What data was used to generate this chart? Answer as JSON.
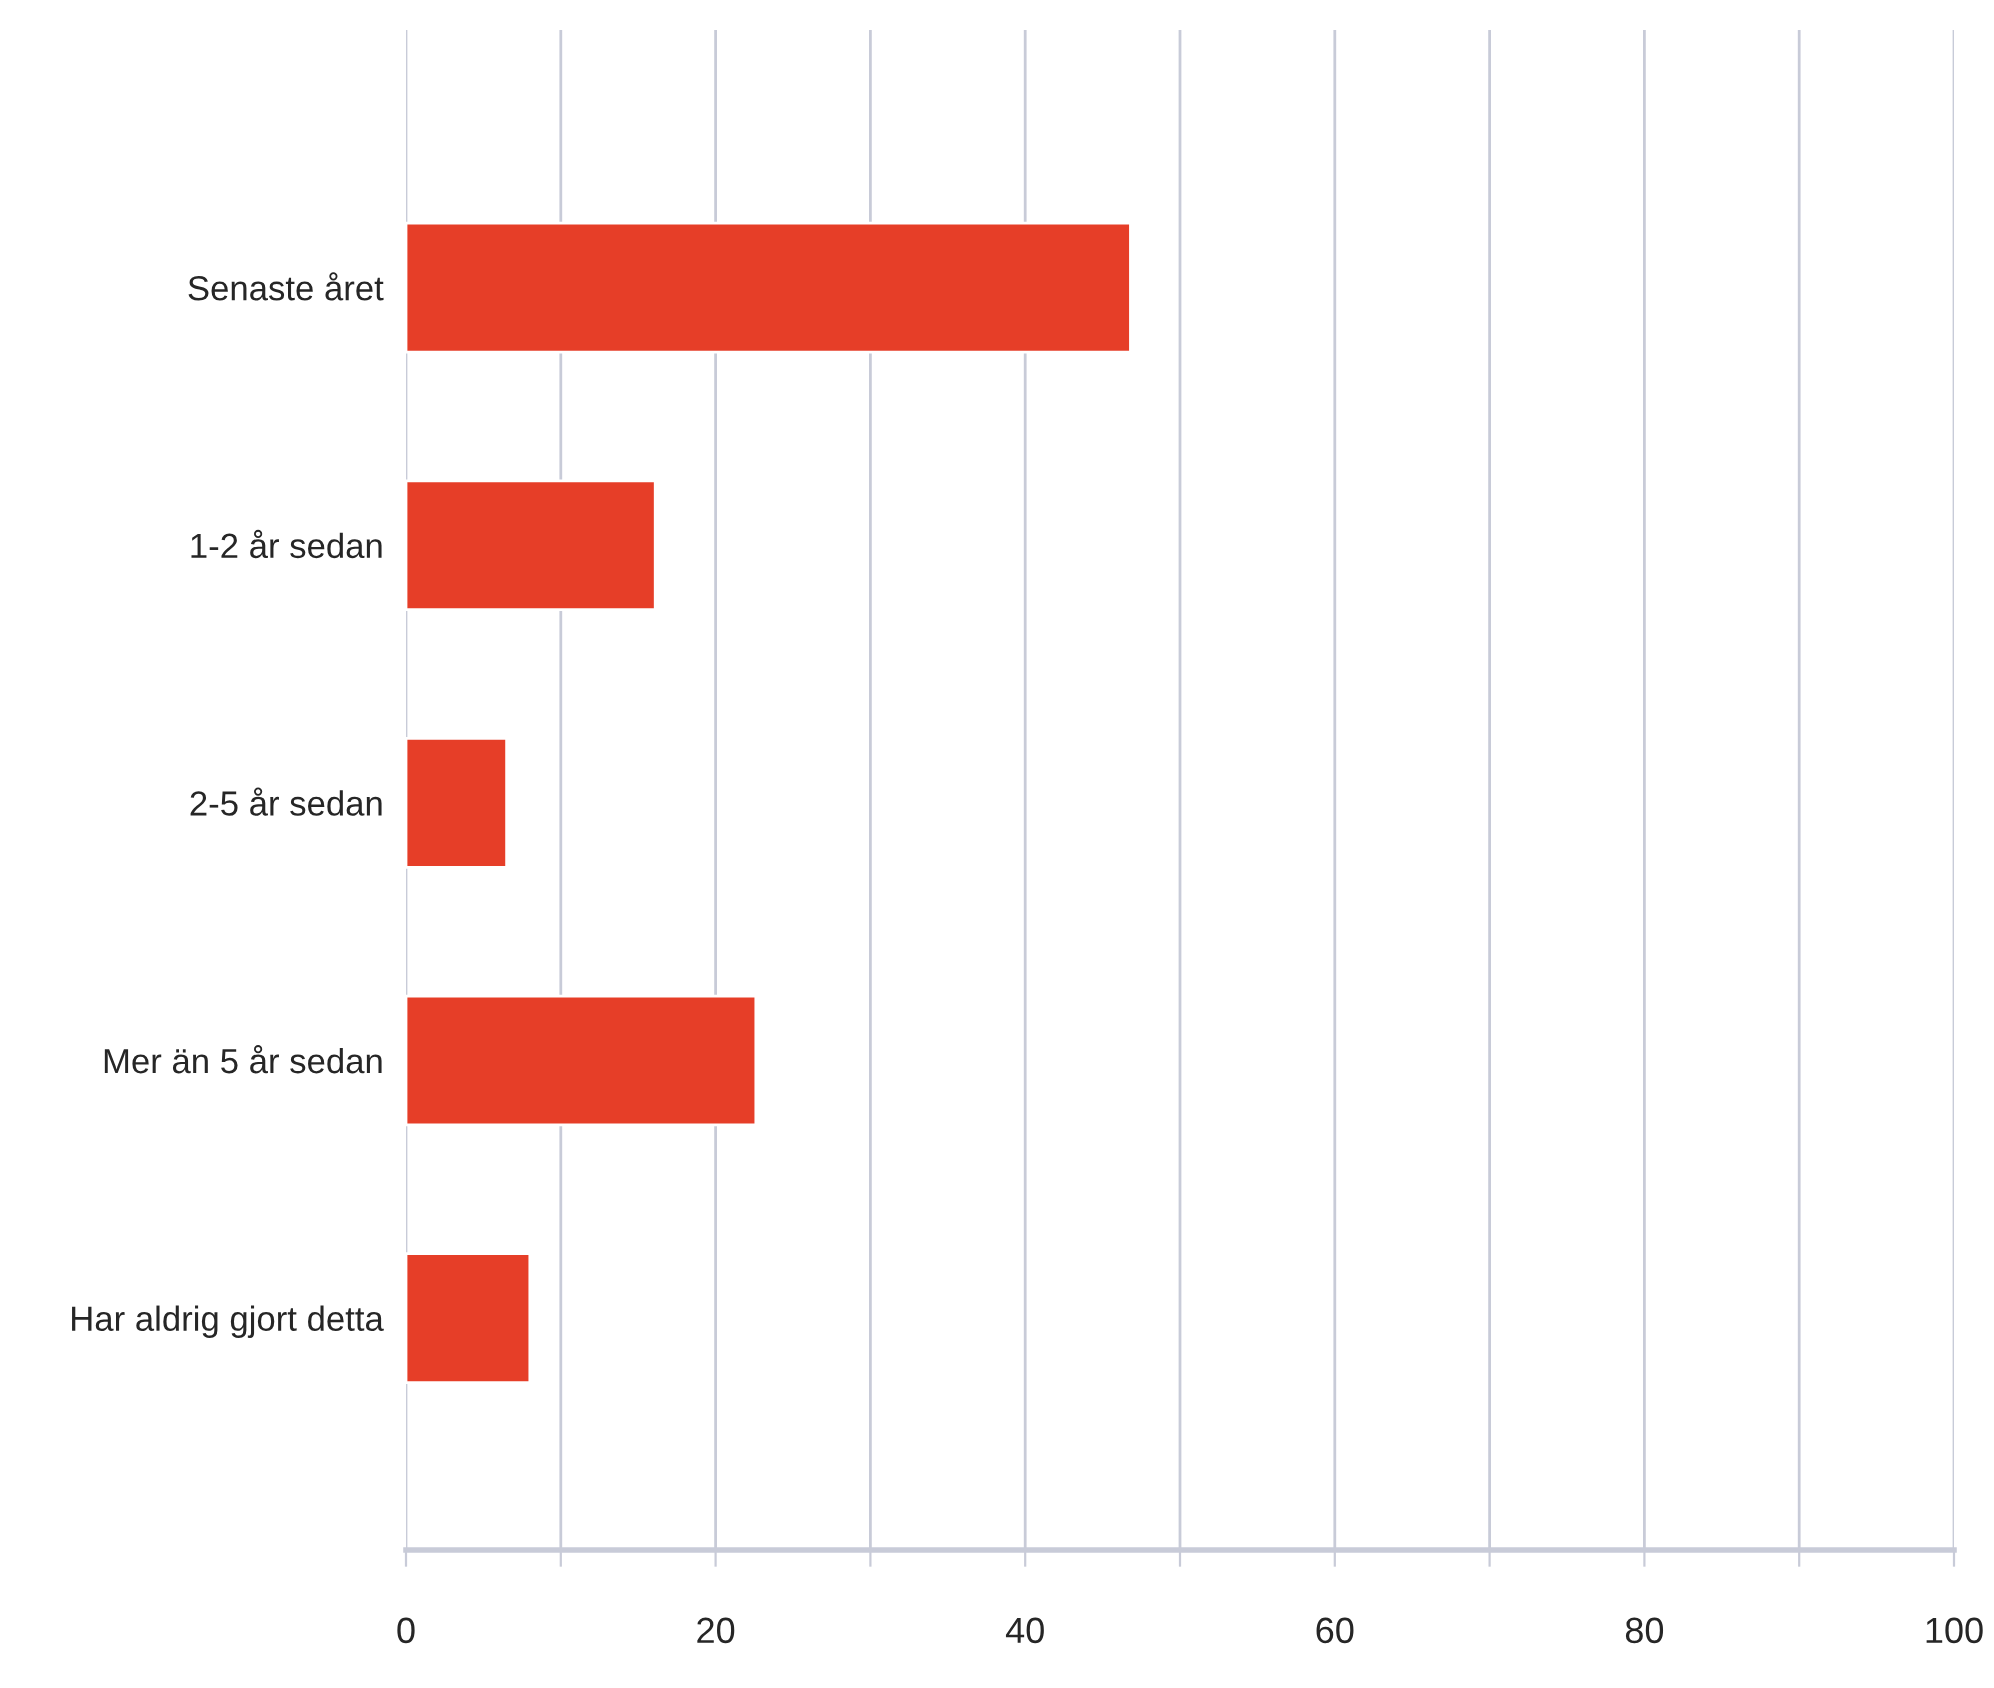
{
  "chart_data": {
    "type": "bar",
    "orientation": "horizontal",
    "categories": [
      "Senaste året",
      "1-2 år sedan",
      "2-5 år sedan",
      "Mer än 5 år sedan",
      "Har aldrig gjort detta"
    ],
    "values": [
      46.8,
      16.1,
      6.5,
      22.6,
      8.0
    ],
    "color": "#e63e28",
    "xlim": [
      0,
      100
    ],
    "xticks": [
      0,
      {
        "value": 10,
        "label": null
      },
      20,
      {
        "value": 30,
        "label": null
      },
      40,
      {
        "value": 50,
        "label": null
      },
      60,
      {
        "value": 70,
        "label": null
      },
      80,
      {
        "value": 90,
        "label": null
      },
      100
    ],
    "grid": "x",
    "legend": false
  }
}
